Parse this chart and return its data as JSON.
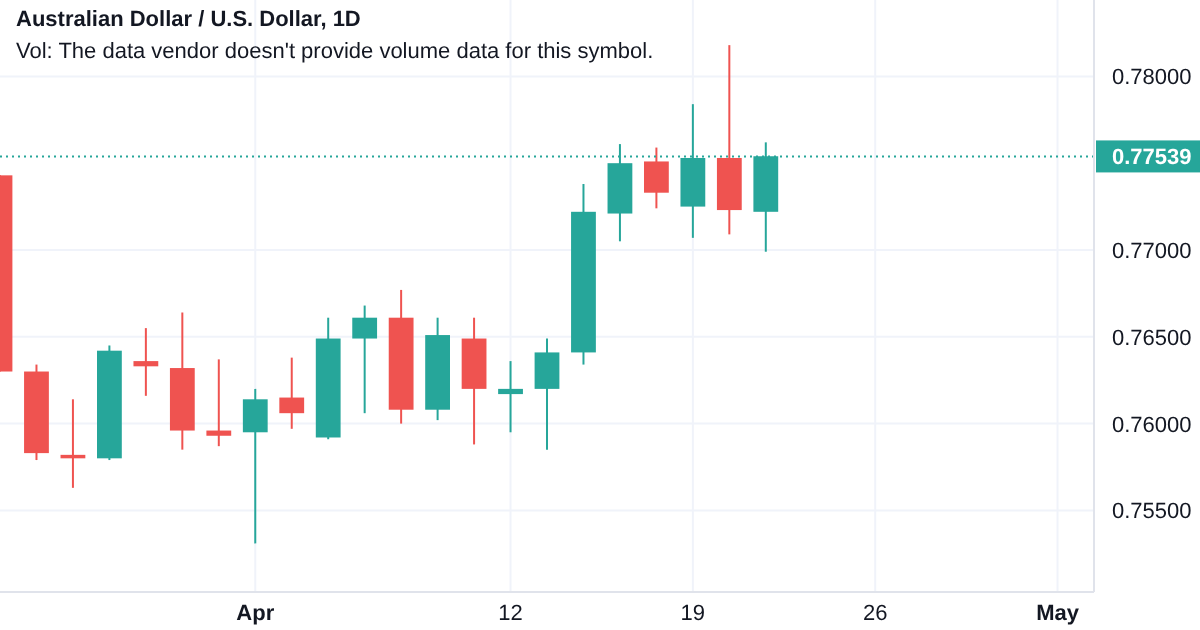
{
  "chart_data": {
    "type": "candlestick",
    "title": "Australian Dollar / U.S. Dollar, 1D",
    "subtitle": "Vol: The data vendor doesn't provide volume data for this symbol.",
    "categories": [
      null,
      null,
      null,
      null,
      null,
      null,
      null,
      "Apr",
      null,
      null,
      null,
      null,
      null,
      null,
      "12",
      null,
      null,
      null,
      null,
      "19",
      null,
      null,
      null,
      null,
      "26",
      null,
      null,
      null,
      null,
      "May",
      null
    ],
    "ohlc": [
      [
        0.7743,
        0.7743,
        0.763,
        0.763
      ],
      [
        0.763,
        0.7634,
        0.7579,
        0.7583
      ],
      [
        0.7582,
        0.7614,
        0.7563,
        0.758
      ],
      [
        0.758,
        0.7645,
        0.7579,
        0.7642
      ],
      [
        0.7636,
        0.7655,
        0.7616,
        0.7633
      ],
      [
        0.7632,
        0.7664,
        0.7585,
        0.7596
      ],
      [
        0.7596,
        0.7637,
        0.7587,
        0.7593
      ],
      [
        0.7595,
        0.762,
        0.7531,
        0.7614
      ],
      [
        0.7615,
        0.7638,
        0.7597,
        0.7606
      ],
      [
        0.7592,
        0.7661,
        0.7591,
        0.7649
      ],
      [
        0.7649,
        0.7668,
        0.7606,
        0.7661
      ],
      [
        0.7661,
        0.7677,
        0.76,
        0.7608
      ],
      [
        0.7608,
        0.7661,
        0.7602,
        0.7651
      ],
      [
        0.7649,
        0.7661,
        0.7588,
        0.762
      ],
      [
        0.7617,
        0.7636,
        0.7595,
        0.762
      ],
      [
        0.762,
        0.7649,
        0.7585,
        0.7641
      ],
      [
        0.7641,
        0.7738,
        0.7634,
        0.7722
      ],
      [
        0.7721,
        0.7761,
        0.7705,
        0.775
      ],
      [
        0.7751,
        0.7759,
        0.7724,
        0.7733
      ],
      [
        0.7725,
        0.7784,
        0.7707,
        0.7753
      ],
      [
        0.7753,
        0.7818,
        0.7709,
        0.7723
      ],
      [
        0.7722,
        0.7762,
        0.7699,
        0.7754
      ],
      null,
      null,
      null,
      null,
      null,
      null,
      null,
      null,
      null
    ],
    "colors": [
      "#ef5350",
      "#ef5350",
      "#ef5350",
      "#26a69a",
      "#ef5350",
      "#ef5350",
      "#ef5350",
      "#26a69a",
      "#ef5350",
      "#26a69a",
      "#26a69a",
      "#ef5350",
      "#26a69a",
      "#ef5350",
      "#26a69a",
      "#26a69a",
      "#26a69a",
      "#26a69a",
      "#ef5350",
      "#26a69a",
      "#ef5350",
      "#26a69a",
      null,
      null,
      null,
      null,
      null,
      null,
      null,
      null,
      null
    ],
    "ylim": [
      0.7503,
      0.7844
    ],
    "yticks": [
      {
        "value": 0.755,
        "label": "0.75500"
      },
      {
        "value": 0.76,
        "label": "0.76000"
      },
      {
        "value": 0.765,
        "label": "0.76500"
      },
      {
        "value": 0.77,
        "label": "0.77000"
      },
      {
        "value": 0.78,
        "label": "0.78000"
      }
    ],
    "ref_lines": [
      {
        "axis": "y",
        "value": 0.77539,
        "label": "0.77539",
        "color": "#26a69a",
        "line_style": "dotted"
      }
    ],
    "grid": true
  }
}
